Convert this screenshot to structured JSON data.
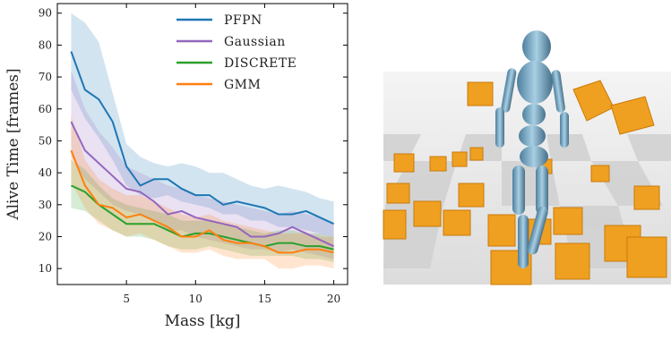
{
  "chart_data": {
    "type": "line",
    "xlabel": "Mass [kg]",
    "ylabel": "Alive Time [frames]",
    "x": [
      1,
      2,
      3,
      4,
      5,
      6,
      7,
      8,
      9,
      10,
      11,
      12,
      13,
      14,
      15,
      16,
      17,
      18,
      19,
      20
    ],
    "xlim": [
      0,
      21
    ],
    "xticks": [
      5,
      10,
      15,
      20
    ],
    "ylim": [
      5,
      93
    ],
    "yticks": [
      10,
      20,
      30,
      40,
      50,
      60,
      70,
      80,
      90
    ],
    "legend": "upper center",
    "series": [
      {
        "name": "PFPN",
        "color": "#1f77b4",
        "values": [
          78,
          66,
          63,
          56,
          42,
          36,
          38,
          38,
          35,
          33,
          33,
          30,
          31,
          30,
          29,
          27,
          27,
          28,
          26,
          24
        ],
        "upper": [
          90,
          87,
          81,
          65,
          49,
          45,
          43,
          42,
          43,
          42,
          40,
          40,
          38,
          36,
          35,
          36,
          35,
          34,
          32,
          31
        ],
        "lower": [
          66,
          57,
          51,
          44,
          36,
          33,
          32,
          33,
          31,
          30,
          29,
          27,
          27,
          25,
          25,
          23,
          23,
          22,
          21,
          20
        ]
      },
      {
        "name": "Gaussian",
        "color": "#9467bd",
        "values": [
          56,
          47,
          43,
          39,
          35,
          34,
          31,
          27,
          28,
          26,
          25,
          24,
          23,
          20,
          20,
          21,
          23,
          21,
          19,
          17
        ],
        "upper": [
          72,
          60,
          53,
          48,
          42,
          40,
          38,
          36,
          35,
          33,
          32,
          31,
          30,
          29,
          28,
          27,
          28,
          27,
          26,
          24
        ],
        "lower": [
          45,
          38,
          34,
          30,
          28,
          27,
          25,
          22,
          22,
          20,
          19,
          18,
          17,
          16,
          16,
          15,
          16,
          15,
          14,
          13
        ]
      },
      {
        "name": "DISCRETE",
        "color": "#2ca02c",
        "values": [
          36,
          34,
          30,
          27,
          24,
          24,
          24,
          22,
          20,
          21,
          21,
          20,
          19,
          18,
          17,
          18,
          18,
          17,
          17,
          16
        ],
        "upper": [
          44,
          41,
          36,
          32,
          30,
          29,
          28,
          27,
          25,
          25,
          25,
          24,
          23,
          22,
          21,
          22,
          22,
          21,
          21,
          20
        ],
        "lower": [
          29,
          28,
          25,
          22,
          20,
          20,
          19,
          17,
          16,
          16,
          17,
          16,
          15,
          14,
          14,
          14,
          14,
          13,
          13,
          12
        ]
      },
      {
        "name": "GMM",
        "color": "#ff7f0e",
        "values": [
          47,
          36,
          30,
          29,
          26,
          27,
          25,
          23,
          20,
          20,
          22,
          19,
          18,
          18,
          17,
          15,
          15,
          16,
          16,
          15
        ],
        "upper": [
          58,
          44,
          38,
          35,
          33,
          33,
          31,
          29,
          27,
          26,
          27,
          25,
          24,
          23,
          22,
          21,
          21,
          21,
          20,
          20
        ],
        "lower": [
          37,
          29,
          24,
          22,
          20,
          21,
          19,
          17,
          15,
          15,
          16,
          14,
          13,
          13,
          13,
          10,
          10,
          11,
          11,
          10
        ]
      }
    ]
  }
}
